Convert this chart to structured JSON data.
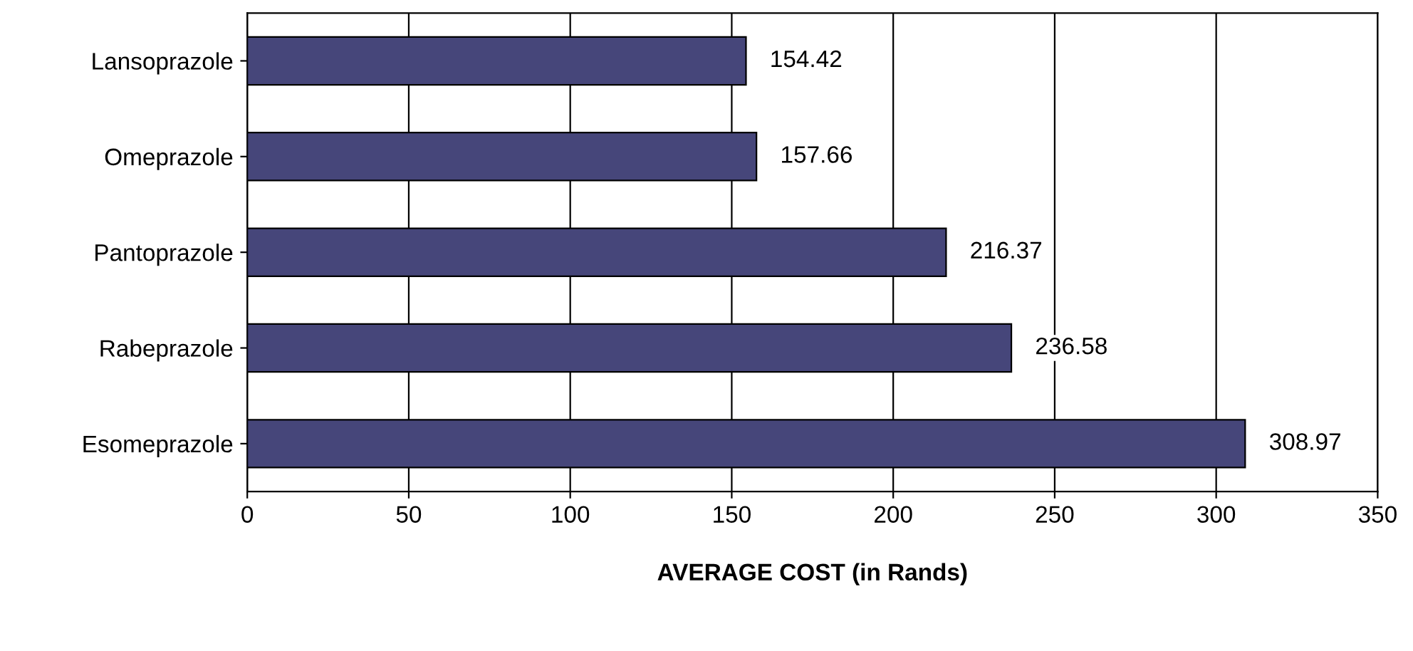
{
  "chart_data": {
    "type": "bar",
    "orientation": "horizontal",
    "xlabel": "AVERAGE COST (in Rands)",
    "categories": [
      "Lansoprazole",
      "Omeprazole",
      "Pantoprazole",
      "Rabeprazole",
      "Esomeprazole"
    ],
    "values": [
      154.42,
      157.66,
      216.37,
      236.58,
      308.97
    ],
    "color": "#46467a",
    "xlim": [
      0,
      350
    ],
    "xticks": [
      0,
      50,
      100,
      150,
      200,
      250,
      300,
      350
    ],
    "grid": "x",
    "data_labels": true
  }
}
